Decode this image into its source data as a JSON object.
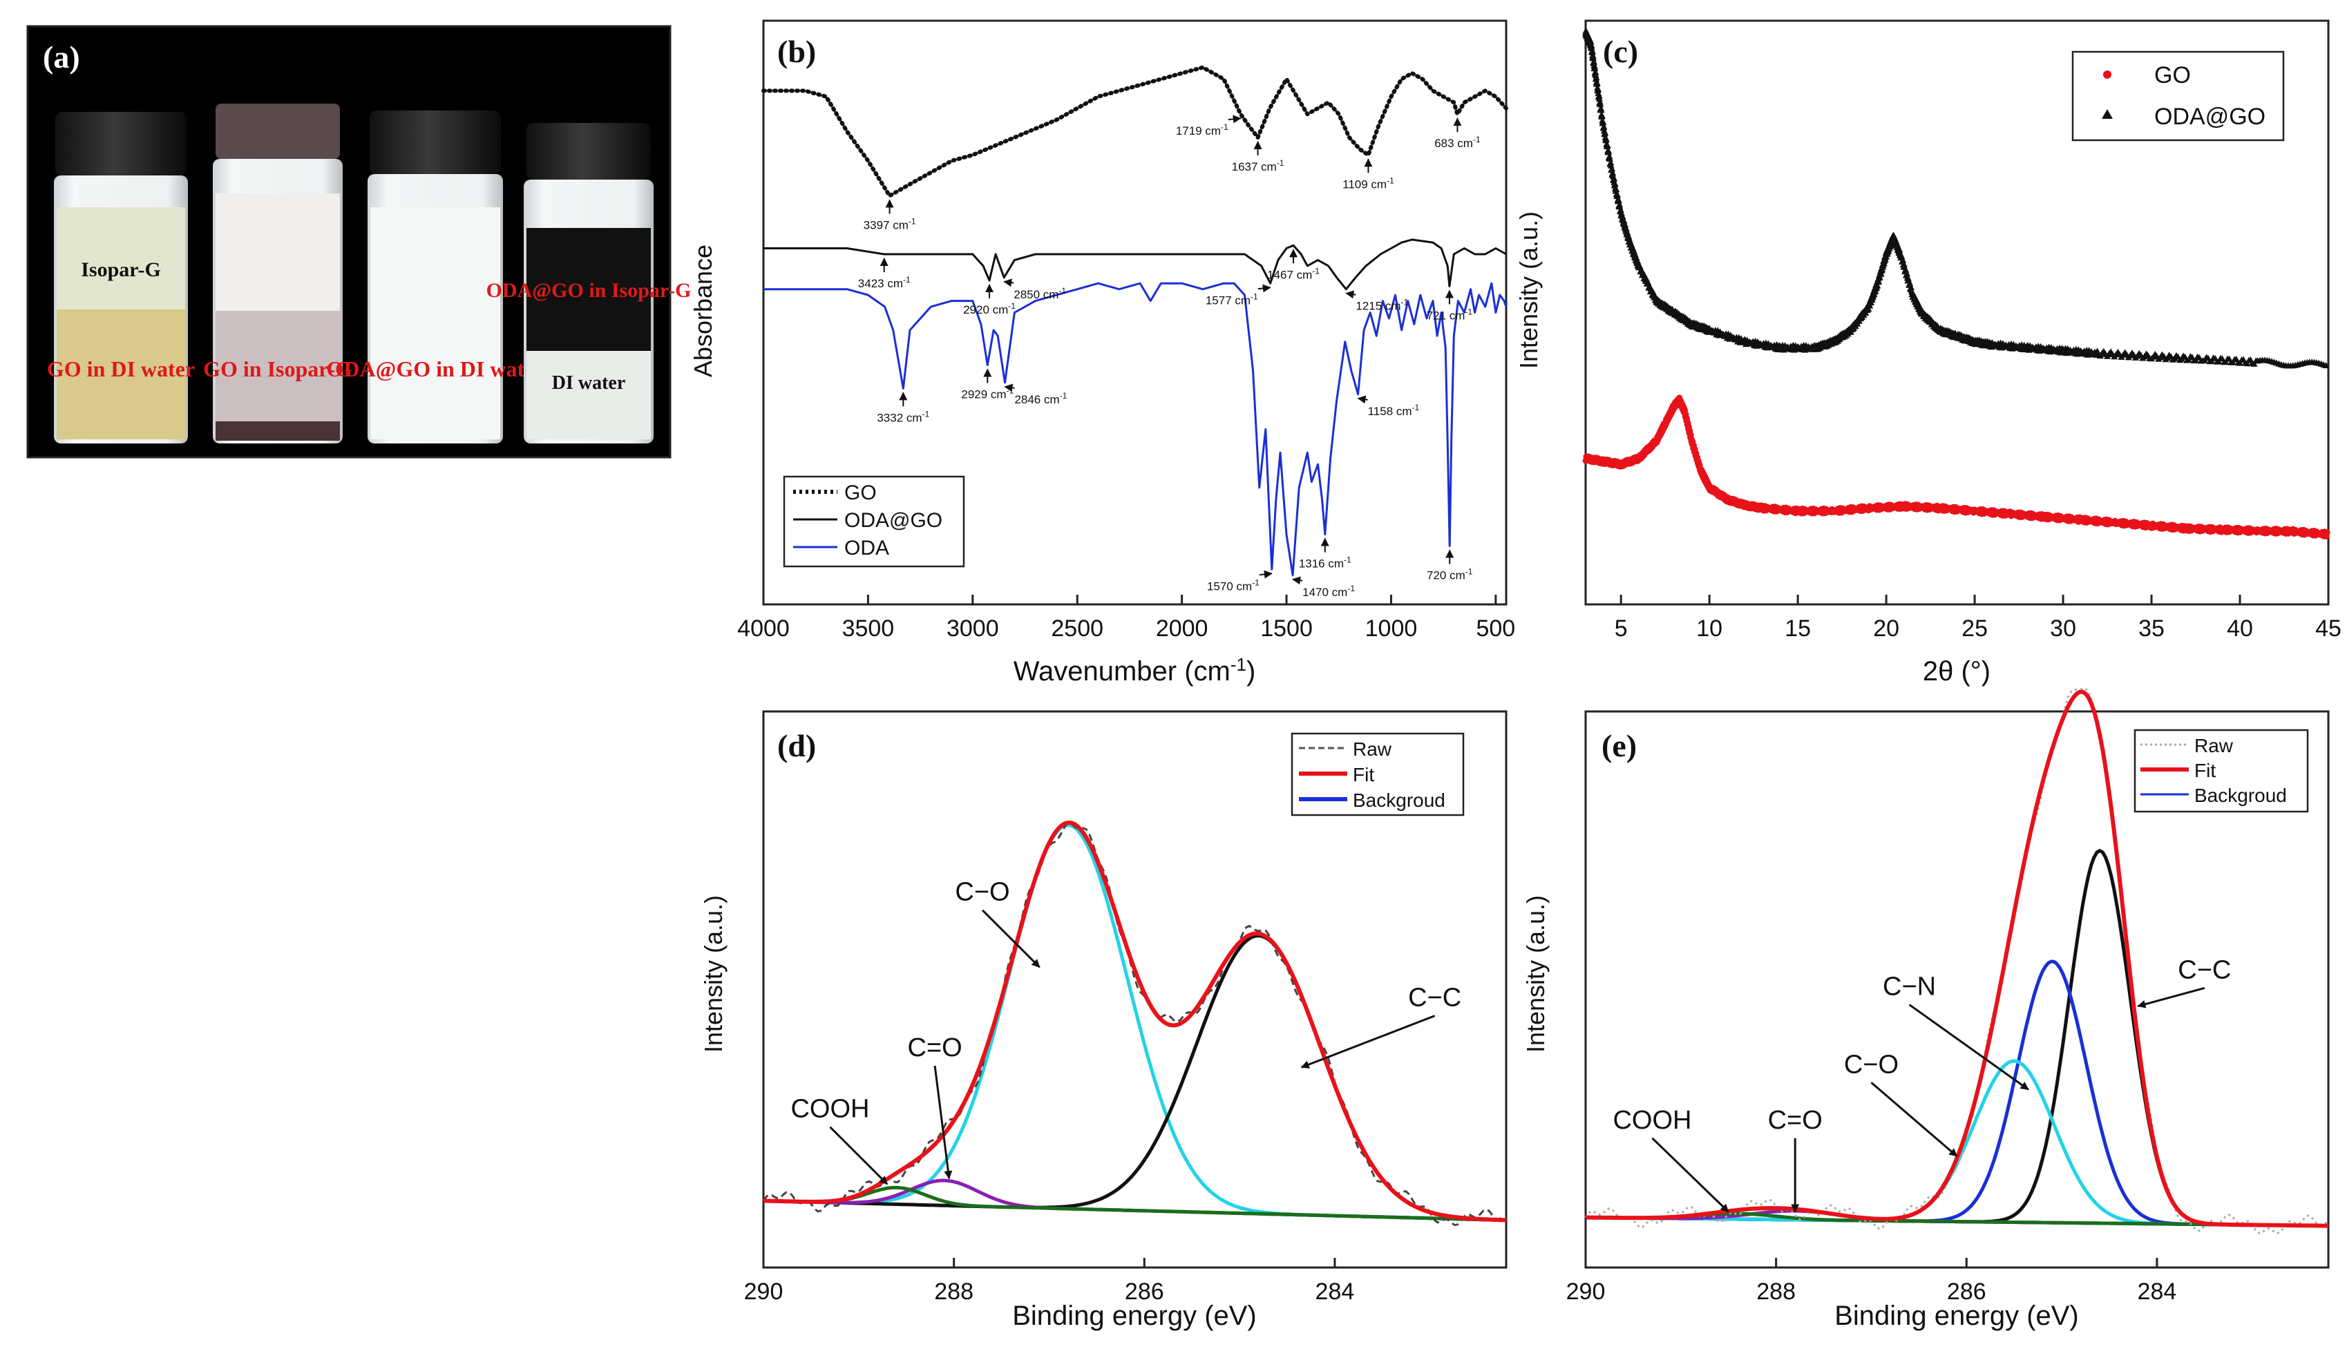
{
  "colors": {
    "red": "#e8121a",
    "blue": "#1a2fd6",
    "black": "#111111",
    "cyan": "#22d3e6",
    "purple": "#8a1fb3",
    "green": "#1a6e1a",
    "gray": "#888888"
  },
  "panel_a": {
    "label": "(a)",
    "vials": [
      {
        "top_text": "Isopar-G",
        "bottom_text": "GO in DI water"
      },
      {
        "top_text": "",
        "bottom_text": "GO in Isopar-G"
      },
      {
        "top_text": "",
        "bottom_text": "ODA@GO in DI water"
      },
      {
        "top_text": "ODA@GO in Isopar-G",
        "bottom_text": "DI water"
      }
    ]
  },
  "chart_data": [
    {
      "id": "b",
      "type": "line",
      "panel_label": "(b)",
      "xlabel": "Wavenumber (cm",
      "xlabel_sup": "-1",
      "xlabel_end": ")",
      "ylabel": "Absorbance",
      "xlim": [
        4000,
        450
      ],
      "ylim": [
        0,
        1
      ],
      "xticks": [
        4000,
        3500,
        3000,
        2500,
        2000,
        1500,
        1000,
        500
      ],
      "legend": [
        "GO",
        "ODA@GO",
        "ODA"
      ],
      "series": [
        {
          "name": "GO",
          "style": "dotted",
          "color": "#111111",
          "x": [
            4000,
            3800,
            3700,
            3600,
            3500,
            3397,
            3300,
            3200,
            3100,
            3000,
            2800,
            2600,
            2400,
            2200,
            2000,
            1900,
            1800,
            1719,
            1680,
            1637,
            1580,
            1500,
            1450,
            1400,
            1350,
            1300,
            1250,
            1200,
            1150,
            1109,
            1060,
            1000,
            950,
            900,
            850,
            800,
            750,
            700,
            683,
            650,
            600,
            550,
            500,
            450
          ],
          "y": [
            0.88,
            0.88,
            0.87,
            0.81,
            0.76,
            0.7,
            0.72,
            0.74,
            0.76,
            0.77,
            0.8,
            0.83,
            0.87,
            0.89,
            0.91,
            0.92,
            0.9,
            0.84,
            0.82,
            0.8,
            0.85,
            0.9,
            0.87,
            0.84,
            0.85,
            0.86,
            0.84,
            0.8,
            0.78,
            0.77,
            0.82,
            0.87,
            0.9,
            0.91,
            0.9,
            0.88,
            0.87,
            0.86,
            0.84,
            0.86,
            0.87,
            0.88,
            0.87,
            0.85
          ]
        },
        {
          "name": "ODA@GO",
          "style": "solid",
          "color": "#111111",
          "x": [
            4000,
            3800,
            3600,
            3423,
            3300,
            3100,
            3000,
            2950,
            2920,
            2890,
            2850,
            2800,
            2700,
            2500,
            2300,
            2100,
            1900,
            1800,
            1700,
            1620,
            1577,
            1540,
            1500,
            1467,
            1430,
            1400,
            1350,
            1300,
            1260,
            1215,
            1170,
            1120,
            1050,
            1000,
            950,
            900,
            800,
            760,
            730,
            721,
            700,
            650,
            600,
            550,
            500,
            450
          ],
          "y": [
            0.61,
            0.61,
            0.61,
            0.6,
            0.6,
            0.6,
            0.6,
            0.58,
            0.555,
            0.6,
            0.56,
            0.59,
            0.6,
            0.6,
            0.6,
            0.6,
            0.6,
            0.6,
            0.6,
            0.58,
            0.55,
            0.59,
            0.61,
            0.615,
            0.6,
            0.58,
            0.59,
            0.58,
            0.56,
            0.54,
            0.56,
            0.58,
            0.6,
            0.61,
            0.62,
            0.625,
            0.62,
            0.61,
            0.58,
            0.545,
            0.6,
            0.61,
            0.6,
            0.6,
            0.61,
            0.6
          ]
        },
        {
          "name": "ODA",
          "style": "solid",
          "color": "#1a2fd6",
          "x": [
            4000,
            3800,
            3600,
            3500,
            3420,
            3380,
            3332,
            3300,
            3200,
            3100,
            3000,
            2960,
            2929,
            2900,
            2880,
            2846,
            2800,
            2700,
            2600,
            2500,
            2400,
            2300,
            2200,
            2150,
            2100,
            2000,
            1900,
            1800,
            1750,
            1700,
            1660,
            1630,
            1600,
            1570,
            1550,
            1530,
            1500,
            1470,
            1440,
            1400,
            1380,
            1350,
            1330,
            1316,
            1290,
            1260,
            1220,
            1190,
            1158,
            1130,
            1100,
            1070,
            1040,
            1010,
            980,
            950,
            920,
            890,
            860,
            830,
            800,
            780,
            760,
            740,
            730,
            720,
            712,
            700,
            680,
            650,
            620,
            600,
            580,
            550,
            520,
            500,
            480,
            460,
            450
          ],
          "y": [
            0.54,
            0.54,
            0.54,
            0.53,
            0.51,
            0.47,
            0.37,
            0.47,
            0.51,
            0.52,
            0.52,
            0.48,
            0.41,
            0.47,
            0.46,
            0.38,
            0.5,
            0.52,
            0.53,
            0.54,
            0.55,
            0.54,
            0.55,
            0.52,
            0.55,
            0.55,
            0.54,
            0.55,
            0.55,
            0.53,
            0.4,
            0.2,
            0.3,
            0.06,
            0.18,
            0.26,
            0.12,
            0.05,
            0.2,
            0.26,
            0.21,
            0.24,
            0.18,
            0.12,
            0.25,
            0.35,
            0.45,
            0.4,
            0.36,
            0.47,
            0.5,
            0.46,
            0.52,
            0.49,
            0.53,
            0.47,
            0.52,
            0.48,
            0.53,
            0.49,
            0.52,
            0.46,
            0.5,
            0.44,
            0.28,
            0.1,
            0.28,
            0.46,
            0.52,
            0.5,
            0.54,
            0.5,
            0.53,
            0.51,
            0.55,
            0.5,
            0.53,
            0.52,
            0.51
          ]
        }
      ],
      "annotations": [
        {
          "text": "3397 cm",
          "x": 3397,
          "series": "GO",
          "pos": "below"
        },
        {
          "text": "1719 cm",
          "x": 1719,
          "series": "GO",
          "pos": "left-below"
        },
        {
          "text": "1637 cm",
          "x": 1637,
          "series": "GO",
          "pos": "below"
        },
        {
          "text": "1109 cm",
          "x": 1109,
          "series": "GO",
          "pos": "below"
        },
        {
          "text": "683 cm",
          "x": 683,
          "series": "GO",
          "pos": "below"
        },
        {
          "text": "3423 cm",
          "x": 3423,
          "series": "ODA@GO",
          "pos": "below"
        },
        {
          "text": "2920 cm",
          "x": 2920,
          "series": "ODA@GO",
          "pos": "below"
        },
        {
          "text": "2850 cm",
          "x": 2850,
          "series": "ODA@GO",
          "pos": "right-below"
        },
        {
          "text": "1577 cm",
          "x": 1577,
          "series": "ODA@GO",
          "pos": "left-below"
        },
        {
          "text": "1467 cm",
          "x": 1467,
          "series": "ODA@GO",
          "pos": "below"
        },
        {
          "text": "1215 cm",
          "x": 1215,
          "series": "ODA@GO",
          "pos": "right-below"
        },
        {
          "text": "721 cm",
          "x": 721,
          "series": "ODA@GO",
          "pos": "below"
        },
        {
          "text": "3332 cm",
          "x": 3332,
          "series": "ODA",
          "pos": "below"
        },
        {
          "text": "2929 cm",
          "x": 2929,
          "series": "ODA",
          "pos": "below"
        },
        {
          "text": "2846 cm",
          "x": 2846,
          "series": "ODA",
          "pos": "right-below"
        },
        {
          "text": "1570 cm",
          "x": 1570,
          "series": "ODA",
          "pos": "left-below"
        },
        {
          "text": "1470 cm",
          "x": 1470,
          "series": "ODA",
          "pos": "right-below"
        },
        {
          "text": "1316 cm",
          "x": 1316,
          "series": "ODA",
          "pos": "below"
        },
        {
          "text": "1158 cm",
          "x": 1158,
          "series": "ODA",
          "pos": "right-below"
        },
        {
          "text": "720 cm",
          "x": 720,
          "series": "ODA",
          "pos": "below"
        }
      ],
      "annotation_sup": "-1"
    },
    {
      "id": "c",
      "type": "scatter",
      "panel_label": "(c)",
      "xlabel": "2θ (°)",
      "ylabel": "Intensity (a.u.)",
      "xlim": [
        3,
        45
      ],
      "ylim": [
        0,
        1
      ],
      "xticks": [
        5,
        10,
        15,
        20,
        25,
        30,
        35,
        40,
        45
      ],
      "legend": [
        "GO",
        "ODA@GO"
      ],
      "series": [
        {
          "name": "GO",
          "marker": "dot",
          "color": "#e8121a",
          "x": [
            3,
            4,
            5,
            6,
            7,
            7.5,
            8,
            8.3,
            8.6,
            9,
            9.5,
            10,
            11,
            12,
            13,
            15,
            17,
            19,
            21,
            23,
            25,
            27,
            29,
            31,
            33,
            35,
            37,
            39,
            41,
            43,
            45
          ],
          "y": [
            0.25,
            0.245,
            0.24,
            0.25,
            0.28,
            0.31,
            0.34,
            0.35,
            0.33,
            0.28,
            0.23,
            0.2,
            0.18,
            0.17,
            0.165,
            0.16,
            0.16,
            0.165,
            0.168,
            0.165,
            0.16,
            0.155,
            0.15,
            0.145,
            0.14,
            0.135,
            0.13,
            0.128,
            0.126,
            0.125,
            0.12
          ]
        },
        {
          "name": "ODA@GO",
          "marker": "triangle",
          "color": "#111111",
          "x": [
            3,
            3.3,
            3.6,
            4,
            4.5,
            5,
            5.5,
            6,
            7,
            8,
            9,
            10,
            12,
            14,
            16,
            17,
            18,
            19,
            19.5,
            20,
            20.4,
            20.8,
            21.5,
            22,
            23,
            24,
            25,
            26,
            28,
            30,
            32,
            35,
            38,
            41,
            45
          ],
          "y": [
            0.98,
            0.96,
            0.9,
            0.82,
            0.74,
            0.67,
            0.62,
            0.58,
            0.52,
            0.5,
            0.48,
            0.47,
            0.45,
            0.44,
            0.44,
            0.45,
            0.47,
            0.51,
            0.55,
            0.6,
            0.63,
            0.6,
            0.53,
            0.5,
            0.47,
            0.46,
            0.45,
            0.445,
            0.44,
            0.435,
            0.43,
            0.425,
            0.42,
            0.415,
            0.41
          ]
        }
      ]
    },
    {
      "id": "d",
      "type": "line",
      "panel_label": "(d)",
      "xlabel": "Binding energy (eV)",
      "ylabel": "Intensity (a.u.)",
      "xlim": [
        290,
        282.2
      ],
      "ylim": [
        0,
        1
      ],
      "xticks": [
        290,
        288,
        286,
        284
      ],
      "legend": [
        "Raw",
        "Fit",
        "Backgroud"
      ],
      "background": {
        "start": 0.12,
        "end": 0.085
      },
      "components": [
        {
          "name": "C-O",
          "color": "#22d3e6",
          "center": 286.8,
          "height": 0.69,
          "sigma": 0.62
        },
        {
          "name": "C-C",
          "color": "#111111",
          "center": 284.8,
          "height": 0.5,
          "sigma": 0.65
        },
        {
          "name": "C=O",
          "color": "#8a1fb3",
          "center": 288.1,
          "height": 0.045,
          "sigma": 0.35
        },
        {
          "name": "COOH",
          "color": "#1a6e1a",
          "center": 288.6,
          "height": 0.03,
          "sigma": 0.3
        }
      ],
      "labels": [
        {
          "text": "C−O",
          "x": 287.7,
          "y": 0.66,
          "arrow_to_x": 287.1,
          "arrow_to_y": 0.54
        },
        {
          "text": "C−C",
          "x": 282.95,
          "y": 0.47,
          "arrow_to_x": 284.35,
          "arrow_to_y": 0.36
        },
        {
          "text": "C=O",
          "x": 288.2,
          "y": 0.38,
          "arrow_to_x": 288.05,
          "arrow_to_y": 0.16
        },
        {
          "text": "COOH",
          "x": 289.3,
          "y": 0.27,
          "arrow_to_x": 288.7,
          "arrow_to_y": 0.15
        }
      ]
    },
    {
      "id": "e",
      "type": "line",
      "panel_label": "(e)",
      "xlabel": "Binding energy (eV)",
      "ylabel": "Intensity (a.u.)",
      "xlim": [
        290,
        282.2
      ],
      "ylim": [
        0,
        1
      ],
      "xticks": [
        290,
        288,
        286,
        284
      ],
      "legend": [
        "Raw",
        "Fit",
        "Backgroud"
      ],
      "background": {
        "start": 0.09,
        "end": 0.075
      },
      "components": [
        {
          "name": "C-C",
          "color": "#111111",
          "center": 284.6,
          "height": 0.67,
          "sigma": 0.32
        },
        {
          "name": "C-N",
          "color": "#1a2fd6",
          "center": 285.1,
          "height": 0.47,
          "sigma": 0.36
        },
        {
          "name": "C-O",
          "color": "#22d3e6",
          "center": 285.5,
          "height": 0.29,
          "sigma": 0.42
        },
        {
          "name": "C=O",
          "color": "#8a1fb3",
          "center": 287.8,
          "height": 0.016,
          "sigma": 0.45
        },
        {
          "name": "COOH",
          "color": "#1a6e1a",
          "center": 288.4,
          "height": 0.01,
          "sigma": 0.4
        }
      ],
      "labels": [
        {
          "text": "C−C",
          "x": 283.5,
          "y": 0.52,
          "arrow_to_x": 284.2,
          "arrow_to_y": 0.47
        },
        {
          "text": "C−N",
          "x": 286.6,
          "y": 0.49,
          "arrow_to_x": 285.35,
          "arrow_to_y": 0.32
        },
        {
          "text": "C−O",
          "x": 287.0,
          "y": 0.35,
          "arrow_to_x": 286.1,
          "arrow_to_y": 0.2
        },
        {
          "text": "C=O",
          "x": 287.8,
          "y": 0.25,
          "arrow_to_x": 287.8,
          "arrow_to_y": 0.1
        },
        {
          "text": "COOH",
          "x": 289.3,
          "y": 0.25,
          "arrow_to_x": 288.5,
          "arrow_to_y": 0.1
        }
      ]
    }
  ]
}
